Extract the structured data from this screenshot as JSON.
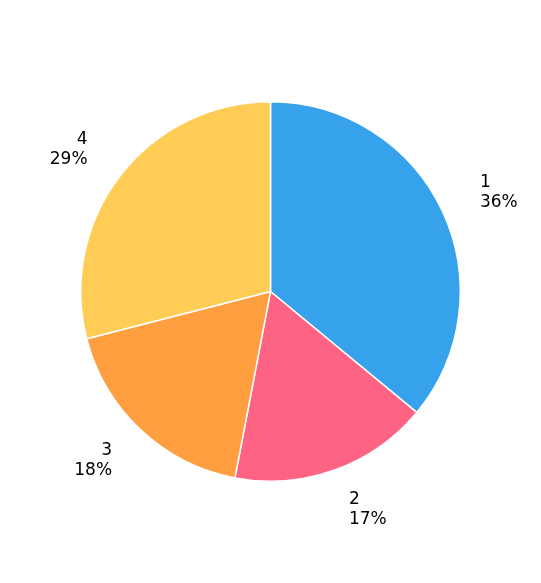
{
  "chart_data": {
    "type": "pie",
    "categories": [
      "1",
      "2",
      "3",
      "4"
    ],
    "values": [
      36,
      17,
      18,
      29
    ],
    "value_labels": [
      "36%",
      "17%",
      "18%",
      "29%"
    ],
    "data_labels": true
  }
}
